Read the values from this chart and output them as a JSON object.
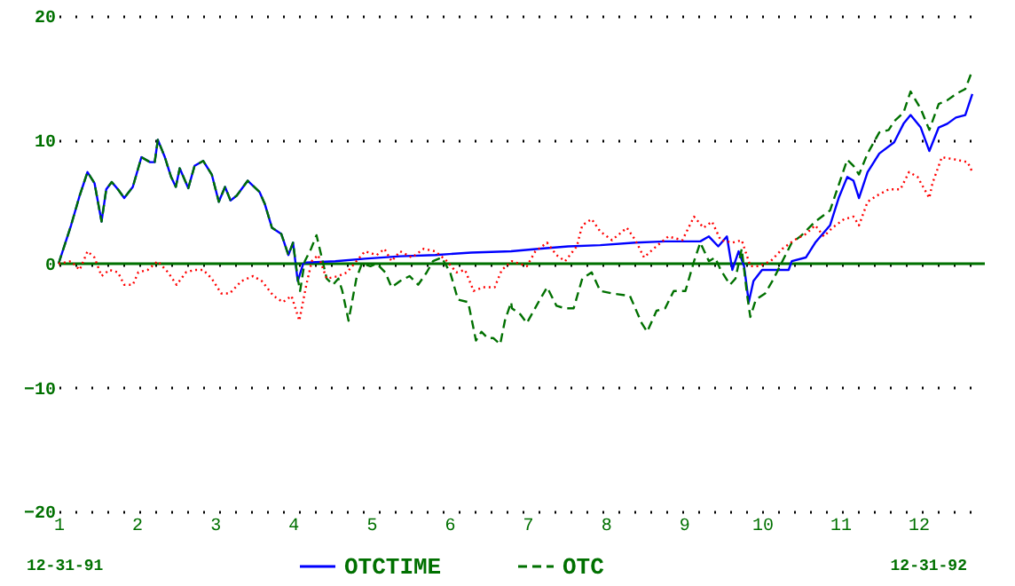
{
  "chart_data": {
    "type": "line",
    "xlim": [
      1,
      12.85
    ],
    "xticks": [
      1,
      2,
      3,
      4,
      5,
      6,
      7,
      8,
      9,
      10,
      11,
      12
    ],
    "ylim": [
      -20,
      20
    ],
    "yticks": [
      -20,
      -10,
      0,
      10,
      20
    ],
    "grid": "y",
    "legend": "bottom",
    "ref_lines": [
      {
        "axis": "y",
        "value": 0,
        "color": "#007000"
      }
    ],
    "annotations": [
      "12-31-91",
      "12-31-92"
    ],
    "series": [
      {
        "name": "OTCTIME",
        "color": "#0000ff",
        "line_style": "solid",
        "x": [
          1.0,
          1.16,
          1.27,
          1.37,
          1.46,
          1.55,
          1.61,
          1.68,
          1.76,
          1.84,
          1.95,
          2.06,
          2.17,
          2.23,
          2.27,
          2.36,
          2.44,
          2.5,
          2.55,
          2.66,
          2.74,
          2.85,
          2.96,
          3.05,
          3.13,
          3.2,
          3.28,
          3.42,
          3.57,
          3.64,
          3.73,
          3.85,
          3.94,
          4.0,
          4.06,
          4.13,
          4.17,
          4.54,
          4.92,
          5.37,
          5.82,
          6.28,
          6.79,
          7.14,
          7.52,
          7.93,
          8.38,
          8.76,
          9.21,
          9.32,
          9.44,
          9.55,
          9.62,
          9.7,
          9.77,
          9.83,
          9.89,
          10.0,
          10.34,
          10.38,
          10.56,
          10.68,
          10.87,
          10.98,
          11.09,
          11.17,
          11.24,
          11.35,
          11.5,
          11.69,
          11.81,
          11.9,
          12.03,
          12.14,
          12.26,
          12.37,
          12.48,
          12.6,
          12.69
        ],
        "values": [
          0,
          3.1,
          5.5,
          7.4,
          6.5,
          3.4,
          6.0,
          6.6,
          6.0,
          5.3,
          6.2,
          8.6,
          8.2,
          8.2,
          10.0,
          8.6,
          7.0,
          6.2,
          7.7,
          6.1,
          7.9,
          8.3,
          7.2,
          5.0,
          6.2,
          5.1,
          5.5,
          6.7,
          5.8,
          4.8,
          2.9,
          2.4,
          0.7,
          1.7,
          -1.4,
          0,
          0.1,
          0.2,
          0.4,
          0.6,
          0.7,
          0.9,
          1.0,
          1.2,
          1.4,
          1.5,
          1.7,
          1.8,
          1.8,
          2.2,
          1.4,
          2.2,
          -0.5,
          1.0,
          -0.2,
          -3.1,
          -1.4,
          -0.5,
          -0.5,
          0.2,
          0.5,
          1.7,
          3.1,
          5.3,
          7.0,
          6.7,
          5.3,
          7.4,
          8.9,
          9.8,
          11.3,
          12.0,
          11.0,
          9.1,
          11.0,
          11.3,
          11.8,
          12.0,
          13.7
        ]
      },
      {
        "name": "OTC",
        "color": "#007000",
        "line_style": "dashed",
        "x": [
          1.0,
          1.16,
          1.27,
          1.37,
          1.46,
          1.55,
          1.61,
          1.68,
          1.76,
          1.84,
          1.95,
          2.06,
          2.17,
          2.23,
          2.27,
          2.36,
          2.44,
          2.5,
          2.55,
          2.66,
          2.74,
          2.85,
          2.96,
          3.05,
          3.13,
          3.2,
          3.28,
          3.42,
          3.57,
          3.64,
          3.73,
          3.85,
          3.94,
          4.0,
          4.06,
          4.09,
          4.15,
          4.23,
          4.3,
          4.36,
          4.43,
          4.51,
          4.58,
          4.63,
          4.71,
          4.81,
          4.88,
          4.99,
          5.07,
          5.18,
          5.26,
          5.37,
          5.49,
          5.6,
          5.71,
          5.79,
          5.9,
          6.01,
          6.11,
          6.24,
          6.34,
          6.41,
          6.49,
          6.56,
          6.65,
          6.71,
          6.79,
          6.8,
          6.91,
          6.99,
          7.14,
          7.25,
          7.37,
          7.48,
          7.59,
          7.7,
          7.82,
          7.93,
          8.08,
          8.31,
          8.46,
          8.53,
          8.65,
          8.76,
          8.87,
          9.02,
          9.13,
          9.21,
          9.32,
          9.4,
          9.47,
          9.59,
          9.66,
          9.74,
          9.81,
          9.85,
          9.92,
          10.04,
          10.15,
          10.26,
          10.38,
          10.49,
          10.68,
          10.87,
          11.09,
          11.17,
          11.24,
          11.35,
          11.5,
          11.62,
          11.69,
          11.81,
          11.9,
          12.03,
          12.14,
          12.26,
          12.37,
          12.48,
          12.6,
          12.69
        ],
        "values": [
          0,
          3.1,
          5.5,
          7.4,
          6.5,
          3.4,
          6.0,
          6.6,
          6.0,
          5.3,
          6.2,
          8.6,
          8.2,
          8.2,
          10.0,
          8.6,
          7.0,
          6.2,
          7.7,
          6.1,
          7.9,
          8.3,
          7.2,
          5.0,
          6.2,
          5.1,
          5.5,
          6.7,
          5.8,
          4.8,
          2.9,
          2.4,
          0.7,
          1.7,
          -1.2,
          -2.2,
          0.2,
          1.2,
          2.3,
          0.7,
          -1.2,
          -1.7,
          -1.2,
          -2.2,
          -4.6,
          -1.2,
          0,
          -0.2,
          0,
          -0.7,
          -1.9,
          -1.4,
          -1.0,
          -1.7,
          -0.7,
          0.2,
          0.5,
          -0.7,
          -2.9,
          -3.1,
          -6.2,
          -5.5,
          -6.0,
          -6.0,
          -6.5,
          -4.6,
          -3.1,
          -3.6,
          -4.1,
          -4.8,
          -3.1,
          -1.9,
          -3.4,
          -3.6,
          -3.6,
          -1.2,
          -0.7,
          -2.2,
          -2.4,
          -2.6,
          -4.8,
          -5.5,
          -3.8,
          -3.6,
          -2.2,
          -2.2,
          0.2,
          1.7,
          0.2,
          0.5,
          -0.5,
          -1.7,
          -1.2,
          1.2,
          -2.6,
          -4.3,
          -2.9,
          -2.4,
          -1.2,
          0.2,
          1.7,
          2.2,
          3.4,
          4.3,
          8.4,
          7.9,
          7.2,
          8.9,
          10.6,
          10.8,
          11.5,
          12.2,
          13.9,
          12.5,
          10.8,
          12.9,
          13.2,
          13.7,
          14.1,
          15.6
        ]
      },
      {
        "color": "#ff0000",
        "line_style": "dotted",
        "x": [
          1.0,
          1.16,
          1.27,
          1.37,
          1.46,
          1.55,
          1.65,
          1.76,
          1.84,
          1.95,
          2.02,
          2.14,
          2.27,
          2.4,
          2.51,
          2.63,
          2.74,
          2.85,
          2.96,
          3.08,
          3.19,
          3.34,
          3.49,
          3.6,
          3.75,
          3.87,
          3.98,
          4.08,
          4.17,
          4.24,
          4.32,
          4.43,
          4.58,
          4.69,
          4.81,
          4.92,
          5.07,
          5.17,
          5.26,
          5.37,
          5.52,
          5.67,
          5.82,
          5.97,
          6.09,
          6.2,
          6.31,
          6.43,
          6.58,
          6.67,
          6.8,
          6.99,
          7.1,
          7.25,
          7.37,
          7.48,
          7.63,
          7.7,
          7.82,
          7.93,
          8.08,
          8.27,
          8.38,
          8.49,
          8.61,
          8.8,
          8.98,
          9.13,
          9.25,
          9.36,
          9.47,
          9.62,
          9.74,
          9.85,
          9.96,
          10.11,
          10.26,
          10.41,
          10.56,
          10.68,
          10.79,
          10.9,
          11.05,
          11.17,
          11.24,
          11.35,
          11.47,
          11.62,
          11.77,
          11.88,
          11.99,
          12.14,
          12.18,
          12.3,
          12.48,
          12.63,
          12.69
        ],
        "values": [
          0,
          0.2,
          -0.5,
          1.0,
          0.5,
          -1.0,
          -0.5,
          -0.7,
          -1.7,
          -1.7,
          -0.7,
          -0.5,
          0.2,
          -0.7,
          -1.7,
          -0.7,
          -0.5,
          -0.5,
          -1.2,
          -2.4,
          -2.4,
          -1.4,
          -1.0,
          -1.4,
          -2.6,
          -3.1,
          -2.6,
          -4.6,
          -1.7,
          0.2,
          0.7,
          -1.2,
          -1.0,
          -0.7,
          0.2,
          1.0,
          0.7,
          1.2,
          0.2,
          1.0,
          0.5,
          1.2,
          1.0,
          0.2,
          -0.7,
          -0.5,
          -2.2,
          -1.9,
          -1.9,
          -0.5,
          0.2,
          -0.2,
          1.0,
          1.7,
          0.7,
          0.2,
          1.4,
          3.1,
          3.6,
          2.6,
          1.9,
          2.9,
          1.9,
          0.5,
          1.2,
          2.2,
          1.9,
          3.8,
          2.9,
          3.4,
          1.9,
          1.7,
          1.9,
          -0.2,
          -0.2,
          0.2,
          1.2,
          1.9,
          2.4,
          3.1,
          2.2,
          2.9,
          3.6,
          3.8,
          3.1,
          5.0,
          5.5,
          6.0,
          6.0,
          7.4,
          7.0,
          5.3,
          6.5,
          8.6,
          8.4,
          8.2,
          7.4
        ]
      }
    ]
  }
}
